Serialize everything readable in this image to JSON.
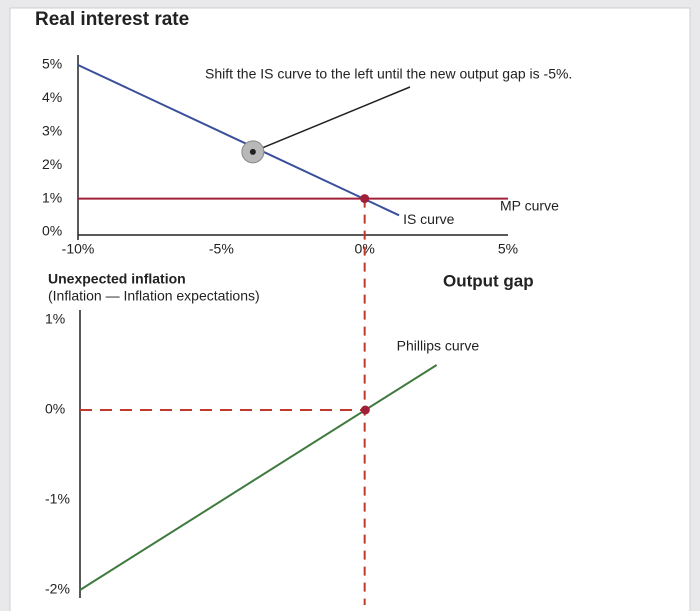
{
  "chart_data": [
    {
      "type": "line",
      "title": "Real interest rate",
      "x_label": "Output gap",
      "annotation": "Shift the IS curve to the left until the new output gap is -5%.",
      "xlim": [
        -10,
        5
      ],
      "ylim": [
        0,
        5
      ],
      "xticks": [
        {
          "value": -10,
          "label": "-10%"
        },
        {
          "value": -5,
          "label": "-5%"
        },
        {
          "value": 0,
          "label": "0%"
        },
        {
          "value": 5,
          "label": "5%"
        }
      ],
      "yticks": [
        {
          "value": 0,
          "label": "0%"
        },
        {
          "value": 1,
          "label": "1%"
        },
        {
          "value": 2,
          "label": "2%"
        },
        {
          "value": 3,
          "label": "3%"
        },
        {
          "value": 4,
          "label": "4%"
        },
        {
          "value": 5,
          "label": "5%"
        }
      ],
      "series": [
        {
          "name": "IS curve",
          "color": "#3a4f9a",
          "x": [
            -10,
            1.2
          ],
          "values": [
            5,
            0.5
          ]
        },
        {
          "name": "MP curve",
          "color": "#a0203a",
          "x": [
            -10,
            5
          ],
          "values": [
            1,
            1
          ]
        }
      ],
      "equilibrium": {
        "x": 0,
        "y": 1
      },
      "handle": {
        "x": -3.9,
        "y": 2.4
      }
    },
    {
      "type": "line",
      "title": "Unexpected inflation",
      "subtitle": "(Inflation — Inflation expectations)",
      "xlim": [
        -10,
        5
      ],
      "ylim": [
        -2,
        1
      ],
      "yticks": [
        {
          "value": 1,
          "label": "1%"
        },
        {
          "value": 0,
          "label": "0%"
        },
        {
          "value": -1,
          "label": "-1%"
        },
        {
          "value": -2,
          "label": "-2%"
        }
      ],
      "series": [
        {
          "name": "Phillips curve",
          "color": "#3f7a3f",
          "x": [
            -10,
            2.5
          ],
          "values": [
            -2,
            0.5
          ]
        }
      ],
      "point": {
        "x": 0,
        "y": 0
      }
    }
  ]
}
